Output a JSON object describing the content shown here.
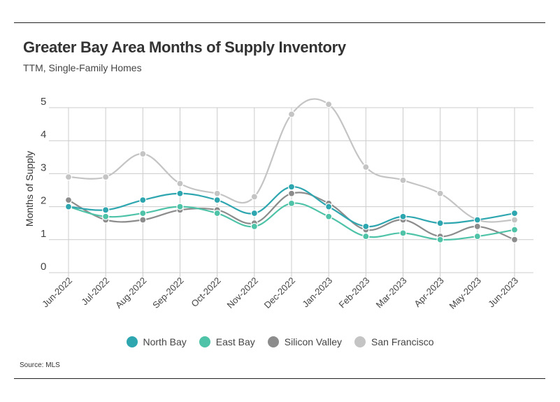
{
  "title": "Greater Bay Area Months of Supply Inventory",
  "subtitle": "TTM, Single-Family Homes",
  "source": "Source: MLS",
  "chart_data": {
    "type": "line",
    "title": "Greater Bay Area Months of Supply Inventory",
    "subtitle": "TTM, Single-Family Homes",
    "xlabel": "",
    "ylabel": "Months of Supply",
    "ylim": [
      0,
      5
    ],
    "yticks": [
      "0",
      "1",
      "2",
      "3",
      "4",
      "5"
    ],
    "grid": true,
    "legend_position": "bottom",
    "categories": [
      "Jun-2022",
      "Jul-2022",
      "Aug-2022",
      "Sep-2022",
      "Oct-2022",
      "Nov-2022",
      "Dec-2022",
      "Jan-2023",
      "Feb-2023",
      "Mar-2023",
      "Apr-2023",
      "May-2023",
      "Jun-2023"
    ],
    "series": [
      {
        "name": "San Francisco",
        "color": "#c4c4c4",
        "values": [
          2.9,
          2.9,
          3.6,
          2.7,
          2.4,
          2.3,
          4.8,
          5.1,
          3.2,
          2.8,
          2.4,
          1.6,
          1.6
        ]
      },
      {
        "name": "Silicon Valley",
        "color": "#8c8c8c",
        "values": [
          2.2,
          1.6,
          1.6,
          1.9,
          1.9,
          1.5,
          2.4,
          2.1,
          1.3,
          1.6,
          1.1,
          1.4,
          1.0
        ]
      },
      {
        "name": "East Bay",
        "color": "#4ec3a8",
        "values": [
          2.0,
          1.7,
          1.8,
          2.0,
          1.8,
          1.4,
          2.1,
          1.7,
          1.1,
          1.2,
          1.0,
          1.1,
          1.3
        ]
      },
      {
        "name": "North Bay",
        "color": "#2ea6b0",
        "values": [
          2.0,
          1.9,
          2.2,
          2.4,
          2.2,
          1.8,
          2.6,
          2.0,
          1.4,
          1.7,
          1.5,
          1.6,
          1.8
        ]
      }
    ],
    "legend": [
      "North Bay",
      "East Bay",
      "Silicon Valley",
      "San Francisco"
    ]
  }
}
